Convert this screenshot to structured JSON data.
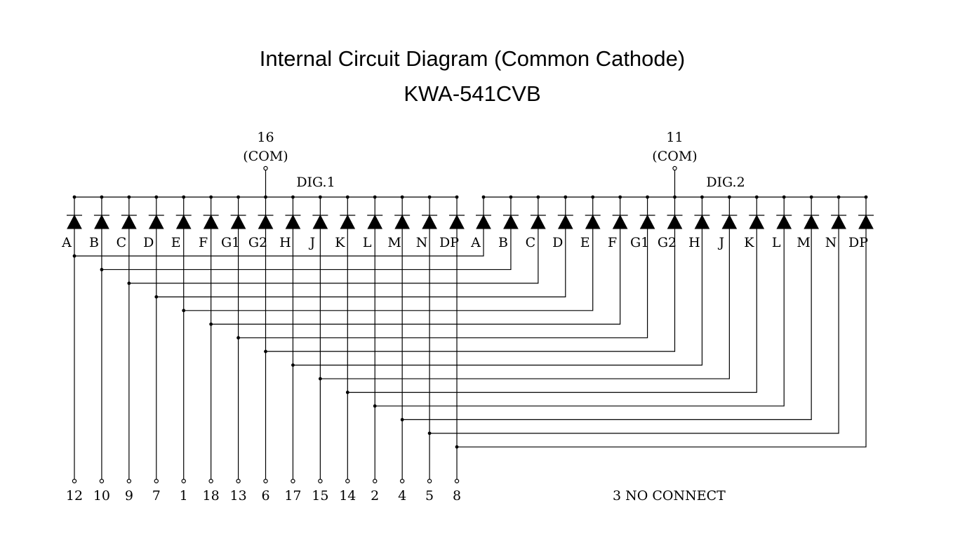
{
  "title": "Internal Circuit Diagram (Common Cathode)",
  "part_number": "KWA-541CVB",
  "segments": [
    "A",
    "B",
    "C",
    "D",
    "E",
    "F",
    "G1",
    "G2",
    "H",
    "J",
    "K",
    "L",
    "M",
    "N",
    "DP"
  ],
  "digits": [
    {
      "label": "DIG.1",
      "com_pin": "16",
      "com_label": "(COM)"
    },
    {
      "label": "DIG.2",
      "com_pin": "11",
      "com_label": "(COM)"
    }
  ],
  "segment_pins": [
    "12",
    "10",
    "9",
    "7",
    "1",
    "18",
    "13",
    "6",
    "17",
    "15",
    "14",
    "2",
    "4",
    "5",
    "8"
  ],
  "note": "3 NO CONNECT",
  "colors": {
    "line": "#000000",
    "background": "#ffffff"
  }
}
